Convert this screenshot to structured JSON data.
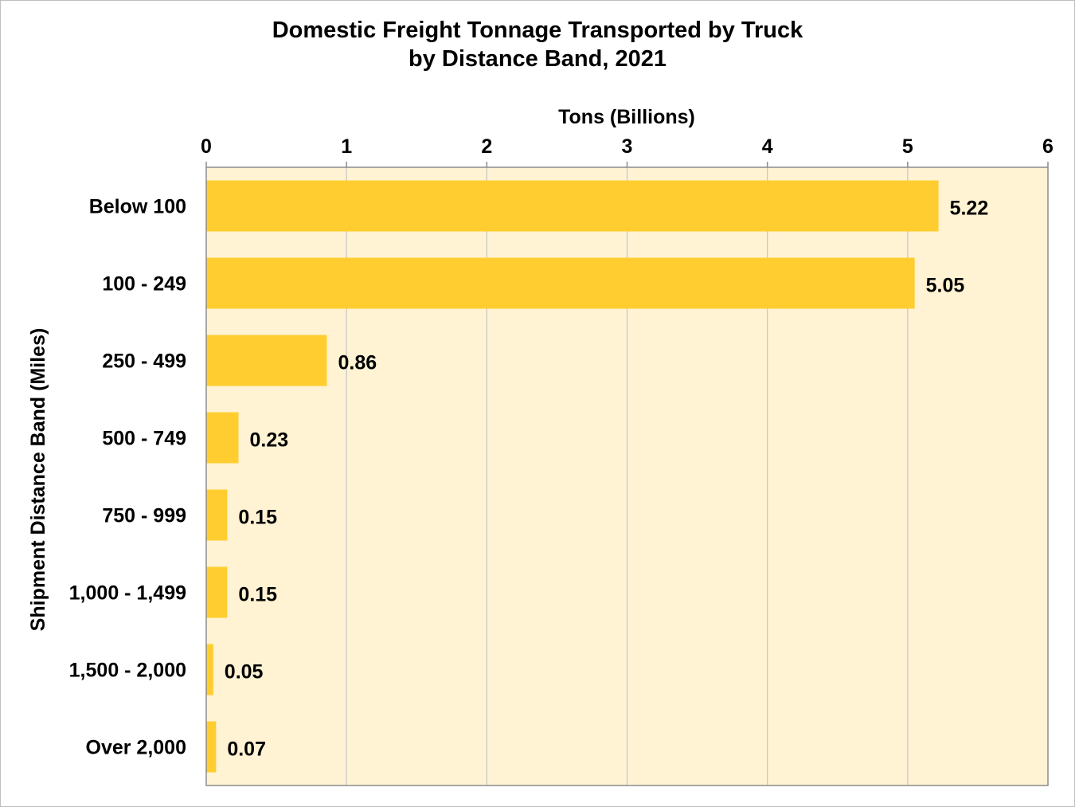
{
  "chart_data": {
    "type": "bar",
    "orientation": "horizontal",
    "title_lines": [
      "Domestic Freight Tonnage Transported by Truck",
      "by Distance Band, 2021"
    ],
    "xlabel": "Tons (Billions)",
    "ylabel": "Shipment Distance Band (Miles)",
    "x_axis_position": "top",
    "xlim": [
      0,
      6
    ],
    "xticks": [
      0,
      1,
      2,
      3,
      4,
      5,
      6
    ],
    "grid": true,
    "categories": [
      "Below 100",
      "100 - 249",
      "250 - 499",
      "500 - 749",
      "750 - 999",
      "1,000 - 1,499",
      "1,500 - 2,000",
      "Over 2,000"
    ],
    "values": [
      5.22,
      5.05,
      0.86,
      0.23,
      0.15,
      0.15,
      0.05,
      0.07
    ],
    "value_labels": [
      "5.22",
      "5.05",
      "0.86",
      "0.23",
      "0.15",
      "0.15",
      "0.05",
      "0.07"
    ],
    "colors": {
      "bar": "#FFCD2F",
      "plot_background": "#FFF3D3",
      "grid": "#c8c8c8",
      "axis": "#8c8c8c"
    }
  }
}
